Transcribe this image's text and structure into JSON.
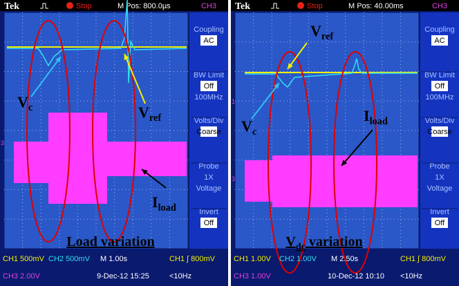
{
  "panels": [
    {
      "header": {
        "brand": "Tek",
        "status": "Stop",
        "mpos": "M Pos: 800.0µs",
        "channel": "CH3"
      },
      "markers": [
        "3"
      ],
      "menu": [
        {
          "title": "Coupling",
          "value": "AC"
        },
        {
          "title": "BW Limit",
          "value": "Off",
          "notes": [
            "100MHz"
          ]
        },
        {
          "title": "Volts/Div",
          "value": "Coarse"
        },
        {
          "title": "Probe",
          "notes": [
            "1X",
            "Voltage"
          ]
        },
        {
          "title": "Invert",
          "value": "Off"
        }
      ],
      "labels": {
        "vc": {
          "main": "V",
          "sub": "c"
        },
        "vref": {
          "main": "V",
          "sub": "ref"
        },
        "iload": {
          "main": "I",
          "sub": "load"
        }
      },
      "caption": {
        "main": "Load variation"
      },
      "footer": {
        "ch1": "CH1  500mV",
        "ch2": "CH2  500mV",
        "time": "M 1.00s",
        "trigger": "CH1 ∫ 800mV",
        "ch3": "CH3  2.00V",
        "date": "9-Dec-12 15:25",
        "freq": "<10Hz"
      }
    },
    {
      "header": {
        "brand": "Tek",
        "status": "Stop",
        "mpos": "M Pos: 40.00ms",
        "channel": "CH3"
      },
      "markers": [
        "1",
        "3"
      ],
      "menu": [
        {
          "title": "Coupling",
          "value": "AC"
        },
        {
          "title": "BW Limit",
          "value": "Off",
          "notes": [
            "100MHz"
          ]
        },
        {
          "title": "Volts/Div",
          "value": "Coarse"
        },
        {
          "title": "Probe",
          "notes": [
            "1X",
            "Voltage"
          ]
        },
        {
          "title": "Invert",
          "value": "Off"
        }
      ],
      "labels": {
        "vc": {
          "main": "V",
          "sub": "c"
        },
        "vref": {
          "main": "V",
          "sub": "ref"
        },
        "iload": {
          "main": "I",
          "sub": "load"
        }
      },
      "caption": {
        "main": "V",
        "sub": "dc",
        "rest": " variation"
      },
      "footer": {
        "ch1": "CH1  1.00V",
        "ch2": "CH2  1.00V",
        "time": "M 2.50s",
        "trigger": "CH1 ∫ 800mV",
        "ch3": "CH3  1.00V",
        "date": "10-Dec-12 10:10",
        "freq": "<10Hz"
      }
    }
  ]
}
